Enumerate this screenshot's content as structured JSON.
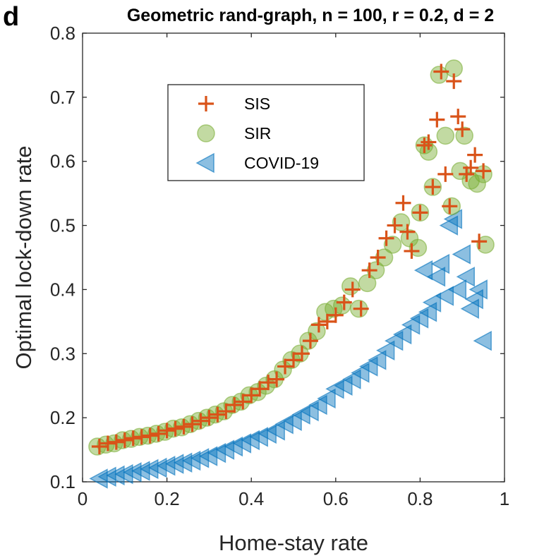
{
  "colors": {
    "sis": "#D95319",
    "sir_fill": "#77AC30",
    "covid_fill": "#0072BD",
    "axis": "#262626"
  },
  "chart_data": {
    "type": "scatter",
    "panel_label": "d",
    "title": "Geometric rand-graph, n = 100, r = 0.2, d = 2",
    "xlabel": "Home-stay rate",
    "ylabel": "Optimal lock-down rate",
    "xlim": [
      0,
      1
    ],
    "ylim": [
      0.1,
      0.8
    ],
    "x_ticks": [
      0,
      0.2,
      0.4,
      0.6,
      0.8,
      1
    ],
    "x_tick_labels": [
      "0",
      "0.2",
      "0.4",
      "0.6",
      "0.8",
      "1"
    ],
    "y_ticks": [
      0.1,
      0.2,
      0.3,
      0.4,
      0.5,
      0.6,
      0.7,
      0.8
    ],
    "y_tick_labels": [
      "0.1",
      "0.2",
      "0.3",
      "0.4",
      "0.5",
      "0.6",
      "0.7",
      "0.8"
    ],
    "grid": false,
    "legend_position": "top-left inside",
    "series": [
      {
        "name": "SIS",
        "marker": "plus",
        "x": [
          0.04,
          0.06,
          0.08,
          0.1,
          0.12,
          0.14,
          0.16,
          0.18,
          0.2,
          0.22,
          0.24,
          0.26,
          0.28,
          0.3,
          0.32,
          0.34,
          0.36,
          0.38,
          0.4,
          0.42,
          0.44,
          0.46,
          0.48,
          0.5,
          0.52,
          0.54,
          0.56,
          0.58,
          0.6,
          0.62,
          0.64,
          0.66,
          0.68,
          0.7,
          0.72,
          0.74,
          0.76,
          0.77,
          0.78,
          0.8,
          0.81,
          0.82,
          0.83,
          0.84,
          0.85,
          0.86,
          0.87,
          0.88,
          0.89,
          0.9,
          0.91,
          0.92,
          0.93,
          0.94,
          0.95
        ],
        "y": [
          0.155,
          0.16,
          0.162,
          0.165,
          0.168,
          0.17,
          0.172,
          0.175,
          0.18,
          0.183,
          0.186,
          0.19,
          0.195,
          0.2,
          0.205,
          0.21,
          0.22,
          0.225,
          0.235,
          0.245,
          0.255,
          0.26,
          0.28,
          0.29,
          0.3,
          0.32,
          0.345,
          0.35,
          0.36,
          0.38,
          0.4,
          0.37,
          0.43,
          0.45,
          0.48,
          0.5,
          0.535,
          0.49,
          0.46,
          0.52,
          0.625,
          0.63,
          0.56,
          0.665,
          0.74,
          0.58,
          0.53,
          0.725,
          0.67,
          0.65,
          0.58,
          0.59,
          0.61,
          0.475,
          0.585
        ]
      },
      {
        "name": "SIR",
        "marker": "circle",
        "x": [
          0.035,
          0.055,
          0.075,
          0.095,
          0.115,
          0.135,
          0.155,
          0.175,
          0.195,
          0.215,
          0.235,
          0.255,
          0.275,
          0.295,
          0.315,
          0.335,
          0.355,
          0.375,
          0.395,
          0.415,
          0.435,
          0.455,
          0.475,
          0.495,
          0.515,
          0.535,
          0.555,
          0.575,
          0.595,
          0.615,
          0.635,
          0.655,
          0.675,
          0.695,
          0.715,
          0.735,
          0.755,
          0.775,
          0.795,
          0.8,
          0.81,
          0.82,
          0.83,
          0.845,
          0.86,
          0.875,
          0.88,
          0.895,
          0.905,
          0.92,
          0.935,
          0.95,
          0.955
        ],
        "y": [
          0.155,
          0.158,
          0.16,
          0.165,
          0.167,
          0.17,
          0.172,
          0.175,
          0.178,
          0.183,
          0.185,
          0.19,
          0.195,
          0.2,
          0.205,
          0.21,
          0.22,
          0.225,
          0.235,
          0.24,
          0.25,
          0.26,
          0.275,
          0.29,
          0.3,
          0.32,
          0.335,
          0.365,
          0.37,
          0.375,
          0.405,
          0.37,
          0.41,
          0.43,
          0.45,
          0.47,
          0.505,
          0.48,
          0.465,
          0.52,
          0.625,
          0.615,
          0.56,
          0.735,
          0.64,
          0.53,
          0.745,
          0.585,
          0.64,
          0.57,
          0.565,
          0.58,
          0.47
        ]
      },
      {
        "name": "COVID-19",
        "marker": "triangle-left",
        "x": [
          0.04,
          0.06,
          0.08,
          0.1,
          0.12,
          0.14,
          0.16,
          0.18,
          0.2,
          0.22,
          0.24,
          0.26,
          0.28,
          0.3,
          0.32,
          0.34,
          0.36,
          0.38,
          0.4,
          0.42,
          0.44,
          0.46,
          0.48,
          0.5,
          0.52,
          0.54,
          0.56,
          0.58,
          0.6,
          0.62,
          0.64,
          0.66,
          0.68,
          0.7,
          0.72,
          0.74,
          0.76,
          0.78,
          0.8,
          0.81,
          0.82,
          0.83,
          0.84,
          0.85,
          0.86,
          0.87,
          0.88,
          0.89,
          0.9,
          0.91,
          0.92,
          0.93,
          0.94,
          0.95
        ],
        "y": [
          0.105,
          0.108,
          0.11,
          0.112,
          0.115,
          0.117,
          0.12,
          0.122,
          0.125,
          0.128,
          0.13,
          0.133,
          0.137,
          0.14,
          0.145,
          0.15,
          0.155,
          0.16,
          0.165,
          0.17,
          0.175,
          0.18,
          0.19,
          0.195,
          0.205,
          0.21,
          0.22,
          0.23,
          0.245,
          0.25,
          0.26,
          0.27,
          0.28,
          0.29,
          0.305,
          0.32,
          0.33,
          0.345,
          0.355,
          0.43,
          0.365,
          0.38,
          0.42,
          0.44,
          0.39,
          0.5,
          0.51,
          0.4,
          0.455,
          0.42,
          0.37,
          0.385,
          0.4,
          0.32
        ]
      }
    ]
  }
}
